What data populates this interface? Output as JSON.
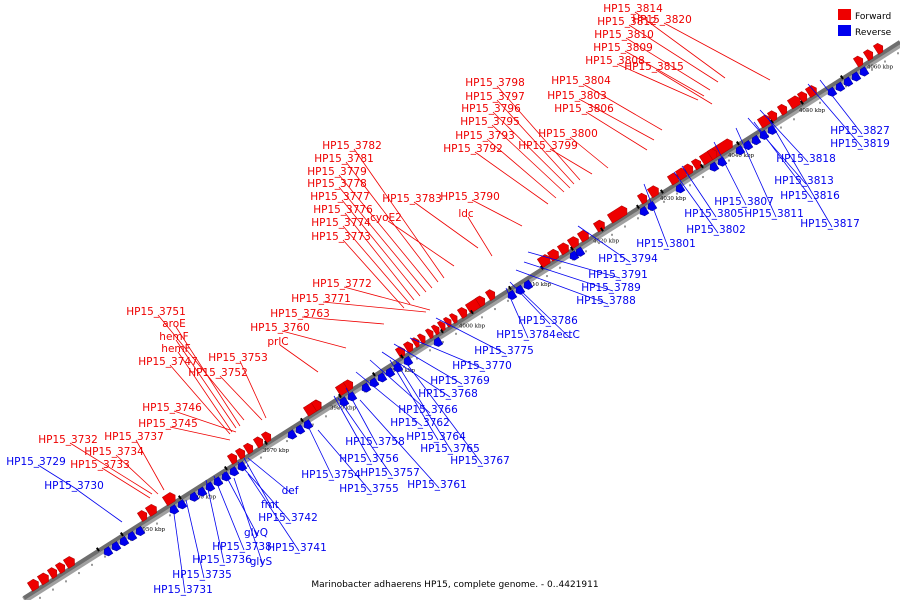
{
  "title": "Marinobacter adhaerens HP15, complete genome. - 0..4421911",
  "legend": [
    {
      "label": "Forward",
      "color": "#ee0000"
    },
    {
      "label": "Reverse",
      "color": "#0000ee"
    }
  ],
  "colors": {
    "forward": "#ee0000",
    "reverse": "#0000ee",
    "backbone": "#808080"
  },
  "ticks": [
    "3950 kbp",
    "3960 kbp",
    "3970 kbp",
    "3980 kbp",
    "3990 kbp",
    "4000 kbp",
    "4010 kbp",
    "4020 kbp",
    "4030 kbp",
    "4040 kbp",
    "4050 kbp",
    "4060 kbp"
  ],
  "forward_labels": [
    "HP15_3814",
    "HP15_3812",
    "HP15_3810",
    "HP15_3809",
    "HP15_3808",
    "HP15_3820",
    "HP15_3815",
    "HP15_3804",
    "HP15_3803",
    "HP15_3806",
    "HP15_3798",
    "HP15_3797",
    "HP15_3796",
    "HP15_3795",
    "HP15_3793",
    "HP15_3792",
    "HP15_3800",
    "HP15_3799",
    "HP15_3782",
    "HP15_3781",
    "HP15_3779",
    "HP15_3778",
    "HP15_3777",
    "HP15_3776",
    "HP15_3774",
    "HP15_3773",
    "cyoE2",
    "HP15_3783",
    "HP15_3790",
    "ldc",
    "HP15_3772",
    "HP15_3771",
    "HP15_3763",
    "HP15_3760",
    "prlC",
    "HP15_3751",
    "aroE",
    "hemF",
    "hemF",
    "HP15_3747",
    "HP15_3753",
    "HP15_3752",
    "HP15_3746",
    "HP15_3745",
    "HP15_3732",
    "HP15_3737",
    "HP15_3734",
    "HP15_3733"
  ],
  "reverse_labels": [
    "HP15_3827",
    "HP15_3819",
    "HP15_3818",
    "HP15_3813",
    "HP15_3816",
    "HP15_3807",
    "HP15_3811",
    "HP15_3817",
    "HP15_3805",
    "HP15_3802",
    "HP15_3801",
    "HP15_3794",
    "HP15_3791",
    "HP15_3789",
    "HP15_3788",
    "HP15_3786",
    "HP15_3784",
    "ectC",
    "HP15_3775",
    "HP15_3770",
    "HP15_3769",
    "HP15_3768",
    "HP15_3766",
    "HP15_3762",
    "HP15_3764",
    "HP15_3765",
    "HP15_3767",
    "HP15_3758",
    "HP15_3756",
    "HP15_3757",
    "HP15_3761",
    "HP15_3754",
    "HP15_3755",
    "def",
    "fmt",
    "HP15_3742",
    "glyQ",
    "HP15_3738",
    "HP15_3741",
    "HP15_3736",
    "glyS",
    "HP15_3735",
    "HP15_3731",
    "HP15_3729",
    "HP15_3730"
  ]
}
